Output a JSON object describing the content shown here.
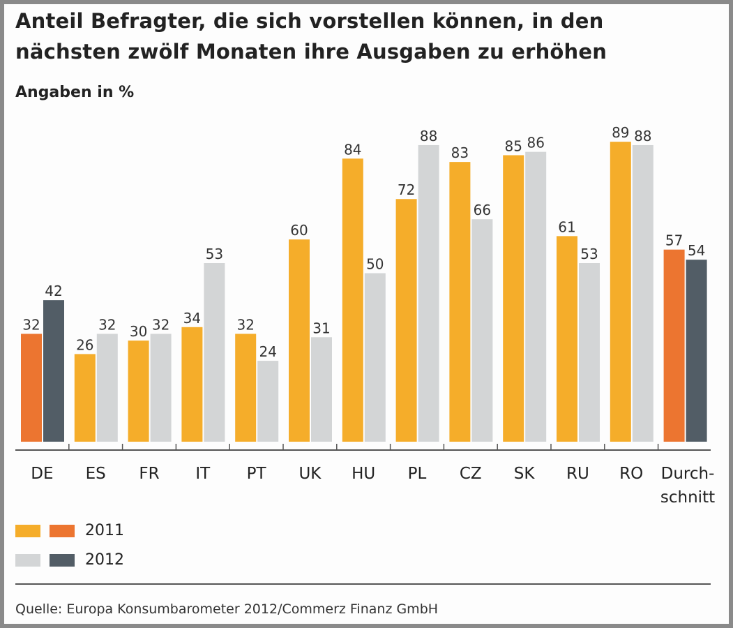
{
  "title_line1": "Anteil Befragter, die sich vorstellen können, in den",
  "title_line2": "nächsten zwölf Monaten ihre Ausgaben zu erhöhen",
  "subtitle": "Angaben in %",
  "source": "Quelle: Europa Konsumbarometer 2012/Commerz Finanz GmbH",
  "colors": {
    "2011": "#f5ad2a",
    "2012": "#d3d5d6",
    "2011_highlight": "#ec7530",
    "2012_highlight": "#525d66"
  },
  "chart_data": {
    "type": "bar",
    "title": "Anteil Befragter, die sich vorstellen können, in den nächsten zwölf Monaten ihre Ausgaben zu erhöhen",
    "subtitle": "Angaben in %",
    "categories": [
      "DE",
      "ES",
      "FR",
      "IT",
      "PT",
      "UK",
      "HU",
      "PL",
      "CZ",
      "SK",
      "RU",
      "RO",
      "Durch-\nschnitt"
    ],
    "highlighted_categories": [
      "DE",
      "Durch-\nschnitt"
    ],
    "series": [
      {
        "name": "2011",
        "values": [
          32,
          26,
          30,
          34,
          32,
          60,
          84,
          72,
          83,
          85,
          61,
          89,
          57
        ]
      },
      {
        "name": "2012",
        "values": [
          42,
          32,
          32,
          53,
          24,
          31,
          50,
          88,
          66,
          86,
          53,
          88,
          54
        ]
      }
    ],
    "ylim": [
      0,
      100
    ],
    "grid": false,
    "legend": "bottom-left",
    "data_labels": true
  }
}
